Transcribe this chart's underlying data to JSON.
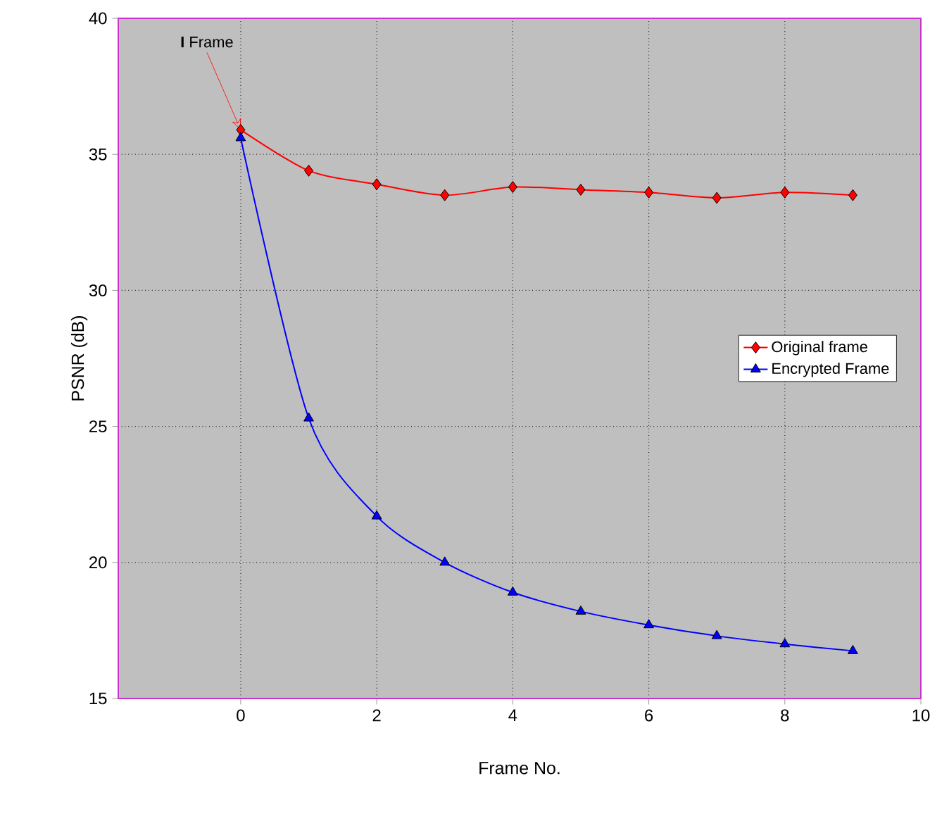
{
  "chart_data": {
    "type": "line",
    "xlabel": "Frame No.",
    "ylabel": "PSNR (dB)",
    "x": [
      0,
      1,
      2,
      3,
      4,
      5,
      6,
      7,
      8,
      9
    ],
    "series": [
      {
        "name": "Original frame",
        "color": "#ff0000",
        "marker": "diamond",
        "values": [
          35.9,
          34.4,
          33.9,
          33.5,
          33.8,
          33.7,
          33.6,
          33.4,
          33.6,
          33.5
        ]
      },
      {
        "name": "Encrypted Frame",
        "color": "#0000ff",
        "marker": "triangle",
        "values": [
          35.6,
          25.3,
          21.7,
          20.0,
          18.9,
          18.2,
          17.7,
          17.3,
          17.0,
          16.75
        ]
      }
    ],
    "xlim": [
      -1.8,
      10
    ],
    "ylim": [
      15,
      40
    ],
    "xticks": [
      0,
      2,
      4,
      6,
      8,
      10
    ],
    "yticks": [
      15,
      20,
      25,
      30,
      35,
      40
    ],
    "grid": true,
    "legend": "right",
    "line_style": "solid",
    "annotations": [
      {
        "text": "**I** Frame",
        "x": 0,
        "y": 35.9
      }
    ]
  }
}
